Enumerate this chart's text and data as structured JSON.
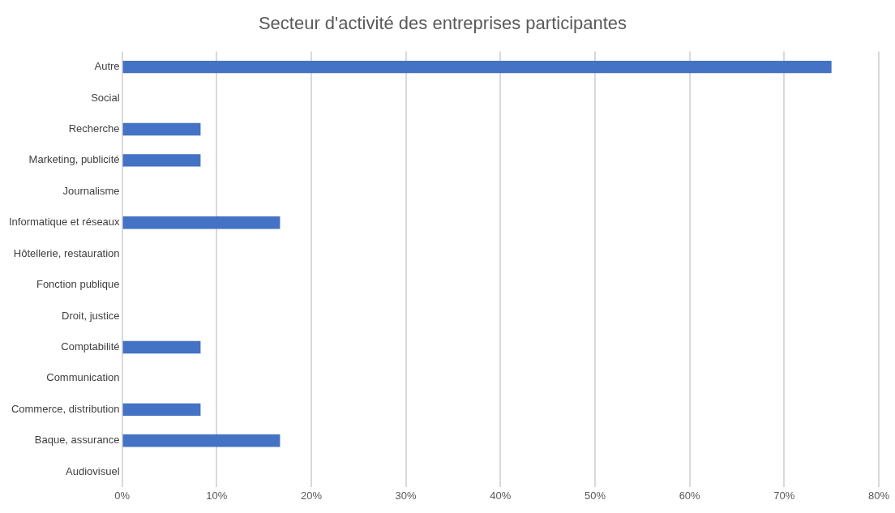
{
  "chart_data": {
    "type": "bar",
    "orientation": "horizontal",
    "title": "Secteur d'activité des entreprises participantes",
    "categories": [
      "Autre",
      "Social",
      "Recherche",
      "Marketing, publicité",
      "Journalisme",
      "Informatique et réseaux",
      "Hôtellerie, restauration",
      "Fonction publique",
      "Droit, justice",
      "Comptabilité",
      "Communication",
      "Commerce, distribution",
      "Baque, assurance",
      "Audiovisuel"
    ],
    "values": [
      75,
      0,
      8.3,
      8.3,
      0,
      16.7,
      0,
      0,
      0,
      8.3,
      0,
      8.3,
      16.7,
      0
    ],
    "color": "#4472c4",
    "xlim": [
      0,
      80
    ],
    "xticks": [
      {
        "value": 0,
        "label": "0%"
      },
      {
        "value": 10,
        "label": "10%"
      },
      {
        "value": 20,
        "label": "20%"
      },
      {
        "value": 30,
        "label": "30%"
      },
      {
        "value": 40,
        "label": "40%"
      },
      {
        "value": 50,
        "label": "50%"
      },
      {
        "value": 60,
        "label": "60%"
      },
      {
        "value": 70,
        "label": "70%"
      },
      {
        "value": 80,
        "label": "80%"
      }
    ],
    "grid": "x"
  }
}
